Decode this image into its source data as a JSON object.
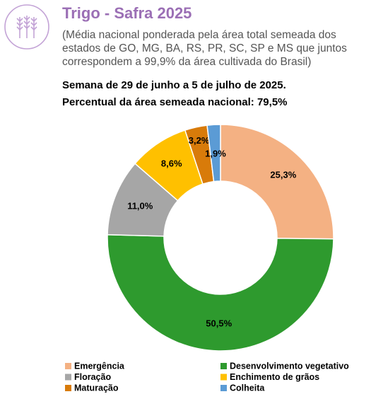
{
  "chart_data": {
    "type": "donut",
    "title": "Trigo - Safra 2025",
    "subtitle": "(Média nacional ponderada pela área total semeada dos estados de GO, MG, BA, RS, PR, SC, SP e MS que juntos correspondem a 99,9% da área cultivada do Brasil)",
    "week": "Semana de 29 de junho a 5 de julho de 2025.",
    "sown_area": "Percentual da área semeada nacional: 79,5%",
    "categories": [
      "Emergência",
      "Desenvolvimento vegetativo",
      "Floração",
      "Enchimento de grãos",
      "Maturação",
      "Colheita"
    ],
    "values": [
      25.3,
      50.5,
      11.0,
      8.6,
      3.2,
      1.9
    ],
    "value_labels": [
      "25,3%",
      "50,5%",
      "11,0%",
      "8,6%",
      "3,2%",
      "1,9%"
    ],
    "colors": [
      "#f4b183",
      "#2e9a2e",
      "#a6a6a6",
      "#ffc000",
      "#d87b0a",
      "#5b9bd5"
    ]
  }
}
